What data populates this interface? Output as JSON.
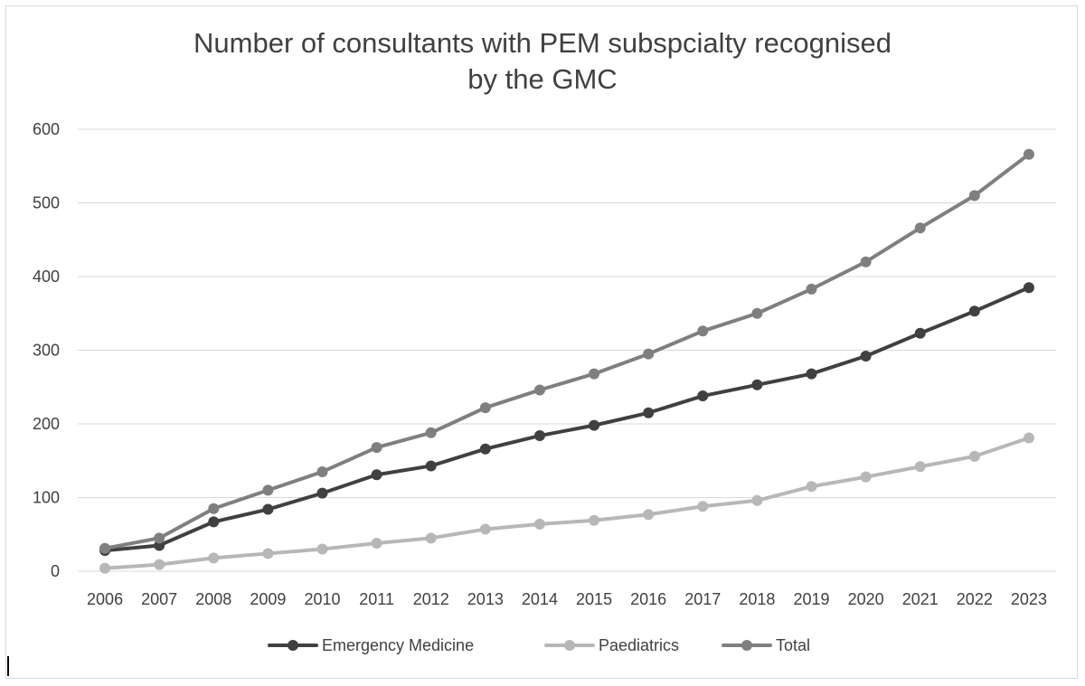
{
  "chart_data": {
    "type": "line",
    "title_lines": [
      "Number of consultants with PEM subspcialty recognised",
      "by the GMC"
    ],
    "xlabel": "",
    "ylabel": "",
    "categories": [
      "2006",
      "2007",
      "2008",
      "2009",
      "2010",
      "2011",
      "2012",
      "2013",
      "2014",
      "2015",
      "2016",
      "2017",
      "2018",
      "2019",
      "2020",
      "2021",
      "2022",
      "2023"
    ],
    "ylim": [
      0,
      600
    ],
    "yticks": [
      "0",
      "100",
      "200",
      "300",
      "400",
      "500",
      "600"
    ],
    "grid": "horizontal",
    "legend_position": "bottom",
    "series": [
      {
        "name": "Emergency Medicine",
        "color": "#404040",
        "values": [
          28,
          35,
          67,
          84,
          106,
          131,
          143,
          166,
          184,
          198,
          215,
          238,
          253,
          268,
          292,
          323,
          353,
          385
        ]
      },
      {
        "name": "Paediatrics",
        "color": "#b7b7b7",
        "values": [
          4,
          9,
          18,
          24,
          30,
          38,
          45,
          57,
          64,
          69,
          77,
          88,
          96,
          115,
          128,
          142,
          156,
          181
        ]
      },
      {
        "name": "Total",
        "color": "#7f7f7f",
        "values": [
          31,
          45,
          85,
          110,
          135,
          168,
          188,
          222,
          246,
          268,
          295,
          326,
          350,
          383,
          420,
          466,
          510,
          566
        ]
      }
    ]
  }
}
